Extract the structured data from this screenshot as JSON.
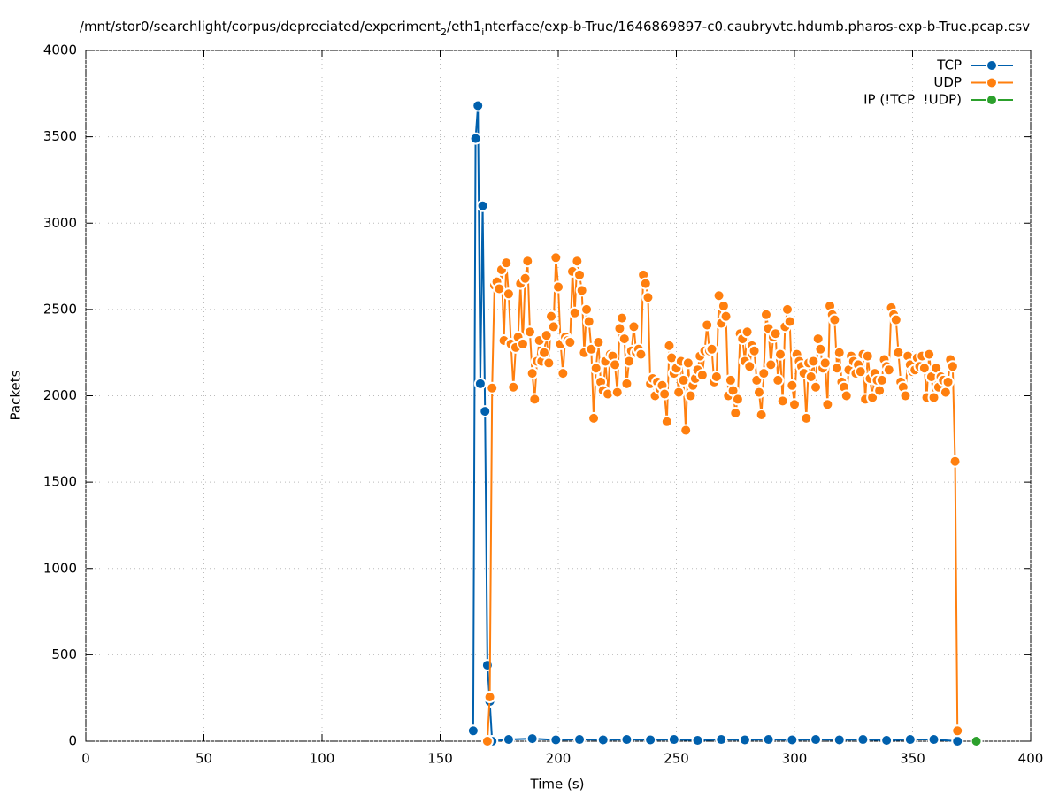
{
  "chart_data": {
    "type": "line",
    "title": [
      "/mnt/stor0/searchlight/corpus/depreciated/experiment",
      "2",
      "/eth1",
      "i",
      "nterface/exp-b-True/1646869897-c0.caubryvtc.hdumb.pharos-exp-b-True.pcap.csv"
    ],
    "x_label": "Time (s)",
    "y_label": "Packets",
    "xlim": [
      0,
      400
    ],
    "xticks": [
      0,
      50,
      100,
      150,
      200,
      250,
      300,
      350,
      400
    ],
    "ylim": [
      0,
      4000
    ],
    "yticks": [
      0,
      500,
      1000,
      1500,
      2000,
      2500,
      3000,
      3500,
      4000
    ],
    "grid": true,
    "legend": "top-right",
    "series": [
      {
        "name": "TCP",
        "color": "#0060ad",
        "x": [
          164,
          165,
          166,
          167,
          168,
          169,
          170,
          171,
          172,
          179,
          189,
          199,
          209,
          219,
          229,
          239,
          249,
          259,
          269,
          279,
          289,
          299,
          309,
          319,
          329,
          339,
          349,
          359,
          369
        ],
        "values": [
          60,
          3490,
          3680,
          2070,
          3100,
          1910,
          440,
          230,
          0,
          10,
          15,
          8,
          10,
          8,
          10,
          8,
          10,
          5,
          10,
          8,
          10,
          8,
          10,
          8,
          10,
          5,
          10,
          10,
          0
        ]
      },
      {
        "name": "UDP",
        "color": "#ff7f0e",
        "x": [
          170,
          171,
          172,
          173,
          174,
          175,
          176,
          177,
          178,
          179,
          180,
          181,
          182,
          183,
          184,
          185,
          186,
          187,
          188,
          189,
          190,
          191,
          192,
          193,
          194,
          195,
          196,
          197,
          198,
          199,
          200,
          201,
          202,
          203,
          204,
          205,
          206,
          207,
          208,
          209,
          210,
          211,
          212,
          213,
          214,
          215,
          216,
          217,
          218,
          219,
          220,
          221,
          222,
          223,
          224,
          225,
          226,
          227,
          228,
          229,
          230,
          231,
          232,
          233,
          234,
          235,
          236,
          237,
          238,
          239,
          240,
          241,
          242,
          243,
          244,
          245,
          246,
          247,
          248,
          249,
          250,
          251,
          252,
          253,
          254,
          255,
          256,
          257,
          258,
          259,
          260,
          261,
          262,
          263,
          264,
          265,
          266,
          267,
          268,
          269,
          270,
          271,
          272,
          273,
          274,
          275,
          276,
          277,
          278,
          279,
          280,
          281,
          282,
          283,
          284,
          285,
          286,
          287,
          288,
          289,
          290,
          291,
          292,
          293,
          294,
          295,
          296,
          297,
          298,
          299,
          300,
          301,
          302,
          303,
          304,
          305,
          306,
          307,
          308,
          309,
          310,
          311,
          312,
          313,
          314,
          315,
          316,
          317,
          318,
          319,
          320,
          321,
          322,
          323,
          324,
          325,
          326,
          327,
          328,
          329,
          330,
          331,
          332,
          333,
          334,
          335,
          336,
          337,
          338,
          339,
          340,
          341,
          342,
          343,
          344,
          345,
          346,
          347,
          348,
          349,
          350,
          351,
          352,
          353,
          354,
          355,
          356,
          357,
          358,
          359,
          360,
          361,
          362,
          363,
          364,
          365,
          366,
          367,
          368,
          369
        ],
        "values": [
          0,
          256,
          2045,
          2640,
          2660,
          2620,
          2730,
          2320,
          2770,
          2590,
          2300,
          2050,
          2280,
          2340,
          2650,
          2300,
          2680,
          2780,
          2370,
          2130,
          1980,
          2200,
          2320,
          2200,
          2250,
          2350,
          2190,
          2460,
          2400,
          2800,
          2630,
          2300,
          2130,
          2340,
          2320,
          2310,
          2720,
          2480,
          2780,
          2700,
          2610,
          2250,
          2500,
          2430,
          2270,
          1870,
          2160,
          2310,
          2080,
          2030,
          2200,
          2010,
          2240,
          2230,
          2180,
          2020,
          2390,
          2450,
          2330,
          2070,
          2200,
          2260,
          2400,
          2250,
          2270,
          2240,
          2700,
          2650,
          2570,
          2070,
          2100,
          2000,
          2080,
          2040,
          2060,
          2010,
          1850,
          2290,
          2220,
          2130,
          2160,
          2020,
          2200,
          2090,
          1800,
          2190,
          2000,
          2060,
          2100,
          2150,
          2230,
          2120,
          2260,
          2410,
          2260,
          2270,
          2080,
          2110,
          2580,
          2420,
          2520,
          2460,
          2000,
          2090,
          2030,
          1900,
          1980,
          2360,
          2330,
          2200,
          2370,
          2170,
          2290,
          2260,
          2090,
          2020,
          1890,
          2130,
          2470,
          2390,
          2180,
          2340,
          2360,
          2090,
          2240,
          1970,
          2400,
          2500,
          2430,
          2060,
          1950,
          2240,
          2200,
          2170,
          2130,
          1870,
          2190,
          2110,
          2200,
          2050,
          2330,
          2270,
          2160,
          2190,
          1950,
          2520,
          2470,
          2440,
          2160,
          2250,
          2080,
          2050,
          2000,
          2150,
          2230,
          2200,
          2130,
          2180,
          2140,
          2240,
          1980,
          2230,
          2100,
          1990,
          2130,
          2090,
          2030,
          2090,
          2210,
          2170,
          2150,
          2510,
          2470,
          2440,
          2250,
          2080,
          2050,
          2000,
          2230,
          2180,
          2140,
          2150,
          2220,
          2170,
          2230,
          2160,
          1990,
          2240,
          2110,
          1990,
          2160,
          2050,
          2110,
          2090,
          2020,
          2080,
          2210,
          2170,
          1620,
          60
        ]
      },
      {
        "name": "IP (!TCP  !UDP)",
        "color": "#2ca02c",
        "x": [
          377
        ],
        "values": [
          0
        ]
      }
    ]
  }
}
